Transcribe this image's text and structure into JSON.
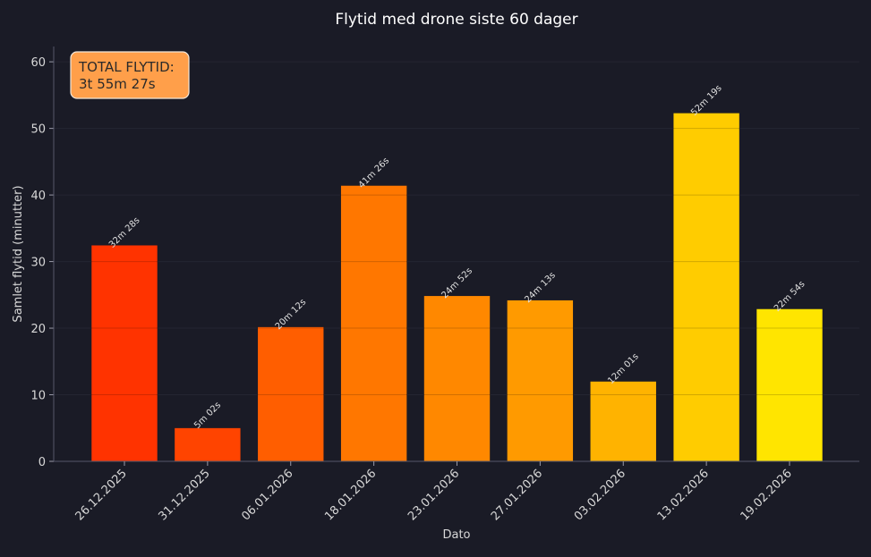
{
  "chart_data": {
    "type": "bar",
    "title": "Flytid med drone siste 60 dager",
    "xlabel": "Dato",
    "ylabel": "Samlet flytid (minutter)",
    "ylim": [
      0,
      62.3
    ],
    "yticks": [
      0,
      10,
      20,
      30,
      40,
      50,
      60
    ],
    "grid": true,
    "categories": [
      "26.12.2025",
      "31.12.2025",
      "06.01.2026",
      "18.01.2026",
      "23.01.2026",
      "27.01.2026",
      "03.02.2026",
      "13.02.2026",
      "19.02.2026"
    ],
    "values": [
      32.47,
      5.03,
      20.2,
      41.43,
      24.87,
      24.22,
      12.02,
      52.32,
      22.9
    ],
    "data_labels": [
      "32m 28s",
      "5m 02s",
      "20m 12s",
      "41m 26s",
      "24m 52s",
      "24m 13s",
      "12m 01s",
      "52m 19s",
      "22m 54s"
    ],
    "colors": [
      "#ff3300",
      "#ff4400",
      "#ff5e00",
      "#ff7700",
      "#ff8800",
      "#ff9a00",
      "#ffb300",
      "#ffcc00",
      "#ffe500"
    ],
    "annotation": {
      "line1": "TOTAL FLYTID:",
      "line2": "3t 55m 27s",
      "color": "#ff9f4a",
      "placement": "top-left"
    },
    "background": "#1a1b26"
  }
}
